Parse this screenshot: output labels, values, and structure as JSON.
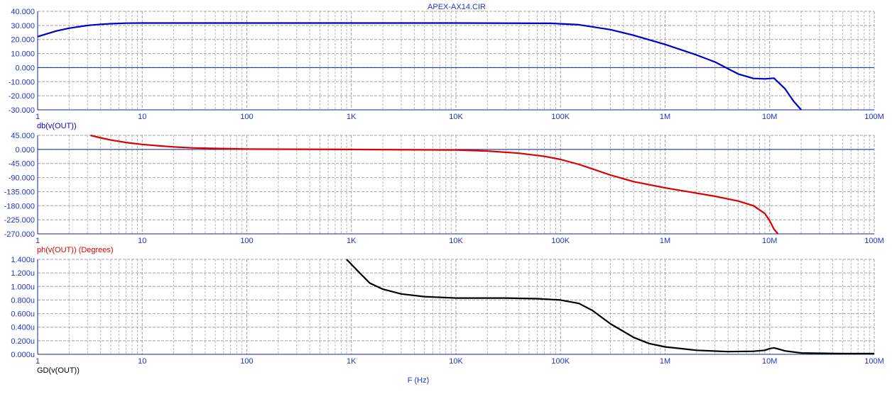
{
  "window": {
    "title": "APEX-AX14.CIR",
    "x_axis_label": "F (Hz)"
  },
  "colors": {
    "magnitude": "#0000cc",
    "phase": "#dd0000",
    "group_delay": "#000000",
    "title_blue": "#2233cc",
    "grid": "#b0b0b0",
    "axis": "#1020a0"
  },
  "chart_data": [
    {
      "type": "line",
      "id": "magnitude",
      "label": "db(v(OUT))",
      "label_color": "#0000cc",
      "xscale": "log",
      "xlim": [
        1,
        100000000
      ],
      "ylim": [
        -30,
        40
      ],
      "x_ticks": [
        1,
        10,
        100,
        1000,
        10000,
        100000,
        1000000,
        10000000,
        100000000
      ],
      "x_tick_labels": [
        "1",
        "10",
        "100",
        "1K",
        "10K",
        "100K",
        "1M",
        "10M",
        "100M"
      ],
      "y_ticks": [
        40,
        30,
        20,
        10,
        0,
        -10,
        -20,
        -30
      ],
      "y_tick_labels": [
        "40.000",
        "30.000",
        "20.000",
        "10.000",
        "0.000",
        "-10.000",
        "-20.000",
        "-30.000"
      ],
      "series": [
        {
          "color": "#0000cc",
          "x": [
            1,
            1.5,
            2,
            3,
            4,
            5,
            7,
            10,
            100,
            1000,
            10000,
            80000,
            150000,
            300000,
            500000,
            1000000,
            2000000,
            3000000,
            5000000,
            7000000,
            9000000,
            11000000,
            14000000,
            17000000,
            20000000
          ],
          "y": [
            22,
            26,
            28,
            30,
            30.8,
            31.2,
            31.6,
            31.7,
            31.7,
            31.7,
            31.7,
            31.5,
            30.5,
            27,
            23,
            16.5,
            9,
            4,
            -4.5,
            -7.7,
            -8,
            -7.5,
            -15,
            -24,
            -30
          ]
        }
      ]
    },
    {
      "type": "line",
      "id": "phase",
      "label": "ph(v(OUT)) (Degrees)",
      "label_color": "#dd0000",
      "xscale": "log",
      "xlim": [
        1,
        100000000
      ],
      "ylim": [
        -270,
        45
      ],
      "x_ticks": [
        1,
        10,
        100,
        1000,
        10000,
        100000,
        1000000,
        10000000,
        100000000
      ],
      "x_tick_labels": [
        "1",
        "10",
        "100",
        "1K",
        "10K",
        "100K",
        "1M",
        "10M",
        "100M"
      ],
      "y_ticks": [
        45,
        0,
        -45,
        -90,
        -135,
        -180,
        -225,
        -270
      ],
      "y_tick_labels": [
        "45.000",
        "0.000",
        "-45.000",
        "-90.000",
        "-135.000",
        "-180.000",
        "-225.000",
        "-270.000"
      ],
      "series": [
        {
          "color": "#dd0000",
          "x": [
            3.2,
            4,
            5,
            7,
            10,
            15,
            20,
            30,
            50,
            100,
            300,
            1000,
            10000,
            20000,
            40000,
            70000,
            100000,
            150000,
            200000,
            300000,
            500000,
            1000000,
            2000000,
            3000000,
            5000000,
            7000000,
            9000000,
            10000000,
            11000000,
            12000000
          ],
          "y": [
            45,
            37,
            30,
            22,
            16,
            11,
            8,
            5,
            3,
            1,
            0.5,
            0,
            -2,
            -5,
            -12,
            -22,
            -32,
            -48,
            -62,
            -82,
            -103,
            -123,
            -140,
            -150,
            -165,
            -180,
            -205,
            -228,
            -255,
            -270
          ]
        }
      ]
    },
    {
      "type": "line",
      "id": "group_delay",
      "label": "GD(v(OUT))",
      "label_color": "#000000",
      "xscale": "log",
      "xlim": [
        1,
        100000000
      ],
      "ylim": [
        0,
        1.4
      ],
      "x_ticks": [
        1,
        10,
        100,
        1000,
        10000,
        100000,
        1000000,
        10000000,
        100000000
      ],
      "x_tick_labels": [
        "1",
        "10",
        "100",
        "1K",
        "10K",
        "100K",
        "1M",
        "10M",
        "100M"
      ],
      "y_ticks": [
        1.4,
        1.2,
        1.0,
        0.8,
        0.6,
        0.4,
        0.2,
        0.0
      ],
      "y_tick_labels": [
        "1.400u",
        "1.200u",
        "1.000u",
        "0.800u",
        "0.600u",
        "0.400u",
        "0.200u",
        "0.000u"
      ],
      "series": [
        {
          "color": "#000000",
          "x": [
            900,
            1200,
            1500,
            2000,
            3000,
            5000,
            10000,
            30000,
            60000,
            100000,
            150000,
            200000,
            300000,
            500000,
            700000,
            1000000,
            2000000,
            4000000,
            7000000,
            9000000,
            10000000,
            11000000,
            12000000,
            14000000,
            20000000,
            50000000,
            100000000
          ],
          "y": [
            1.4,
            1.2,
            1.05,
            0.96,
            0.89,
            0.85,
            0.83,
            0.83,
            0.82,
            0.8,
            0.75,
            0.65,
            0.45,
            0.25,
            0.16,
            0.11,
            0.06,
            0.04,
            0.045,
            0.06,
            0.085,
            0.095,
            0.08,
            0.05,
            0.02,
            0.01,
            0.01
          ]
        }
      ]
    }
  ]
}
